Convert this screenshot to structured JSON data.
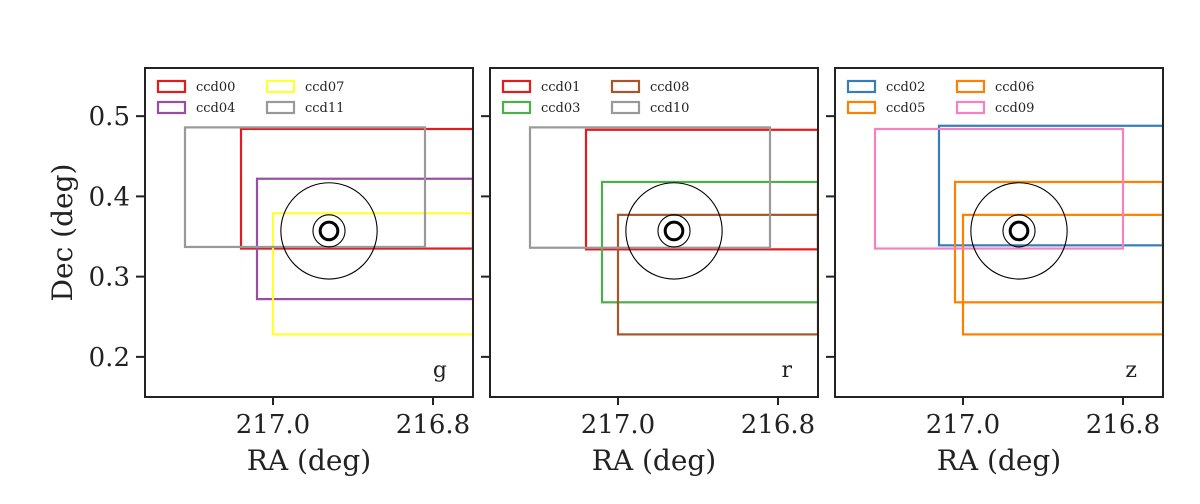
{
  "chart_data": {
    "type": "panel",
    "x_axis": {
      "label": "RA (deg)",
      "ticks": [
        217.0,
        216.8
      ],
      "tick_labels": [
        "217.0",
        "216.8"
      ],
      "range": [
        217.16,
        216.75
      ],
      "reversed": true
    },
    "y_axis": {
      "label": "Dec (deg)",
      "ticks": [
        0.2,
        0.3,
        0.4,
        0.5
      ],
      "tick_labels": [
        "0.2",
        "0.3",
        "0.4",
        "0.5"
      ],
      "range": [
        0.15,
        0.56
      ]
    },
    "target": {
      "ra": 216.93,
      "dec": 0.357,
      "circle_radii_deg": [
        0.06,
        0.02,
        0.011
      ]
    },
    "legend_location": "top-left",
    "panels": [
      {
        "band": "g",
        "ccds": [
          {
            "name": "ccd00",
            "color": "#e41a1c",
            "ra_min": 216.75,
            "ra_max": 217.04,
            "dec_min": 0.335,
            "dec_max": 0.484
          },
          {
            "name": "ccd04",
            "color": "#984ea3",
            "ra_min": 216.75,
            "ra_max": 217.02,
            "dec_min": 0.272,
            "dec_max": 0.422
          },
          {
            "name": "ccd07",
            "color": "#ffff33",
            "ra_min": 216.75,
            "ra_max": 217.0,
            "dec_min": 0.228,
            "dec_max": 0.379
          },
          {
            "name": "ccd11",
            "color": "#999999",
            "ra_min": 216.81,
            "ra_max": 217.11,
            "dec_min": 0.337,
            "dec_max": 0.486
          }
        ]
      },
      {
        "band": "r",
        "ccds": [
          {
            "name": "ccd01",
            "color": "#e41a1c",
            "ra_min": 216.75,
            "ra_max": 217.04,
            "dec_min": 0.334,
            "dec_max": 0.483
          },
          {
            "name": "ccd03",
            "color": "#4daf4a",
            "ra_min": 216.75,
            "ra_max": 217.02,
            "dec_min": 0.268,
            "dec_max": 0.418
          },
          {
            "name": "ccd08",
            "color": "#a65628",
            "ra_min": 216.75,
            "ra_max": 217.0,
            "dec_min": 0.228,
            "dec_max": 0.377
          },
          {
            "name": "ccd10",
            "color": "#999999",
            "ra_min": 216.81,
            "ra_max": 217.11,
            "dec_min": 0.336,
            "dec_max": 0.486
          }
        ]
      },
      {
        "band": "z",
        "ccds": [
          {
            "name": "ccd02",
            "color": "#377eb8",
            "ra_min": 216.75,
            "ra_max": 217.03,
            "dec_min": 0.339,
            "dec_max": 0.488
          },
          {
            "name": "ccd05",
            "color": "#ff7f00",
            "ra_min": 216.75,
            "ra_max": 217.01,
            "dec_min": 0.268,
            "dec_max": 0.418
          },
          {
            "name": "ccd06",
            "color": "#ff7f00",
            "ra_min": 216.75,
            "ra_max": 217.0,
            "dec_min": 0.228,
            "dec_max": 0.377
          },
          {
            "name": "ccd09",
            "color": "#f781bf",
            "ra_min": 216.8,
            "ra_max": 217.11,
            "dec_min": 0.335,
            "dec_max": 0.484
          }
        ]
      }
    ],
    "legend_order": [
      [
        "ccd00",
        "ccd04",
        "ccd07",
        "ccd11"
      ],
      [
        "ccd01",
        "ccd03",
        "ccd08",
        "ccd10"
      ],
      [
        "ccd02",
        "ccd05",
        "ccd06",
        "ccd09"
      ]
    ]
  }
}
